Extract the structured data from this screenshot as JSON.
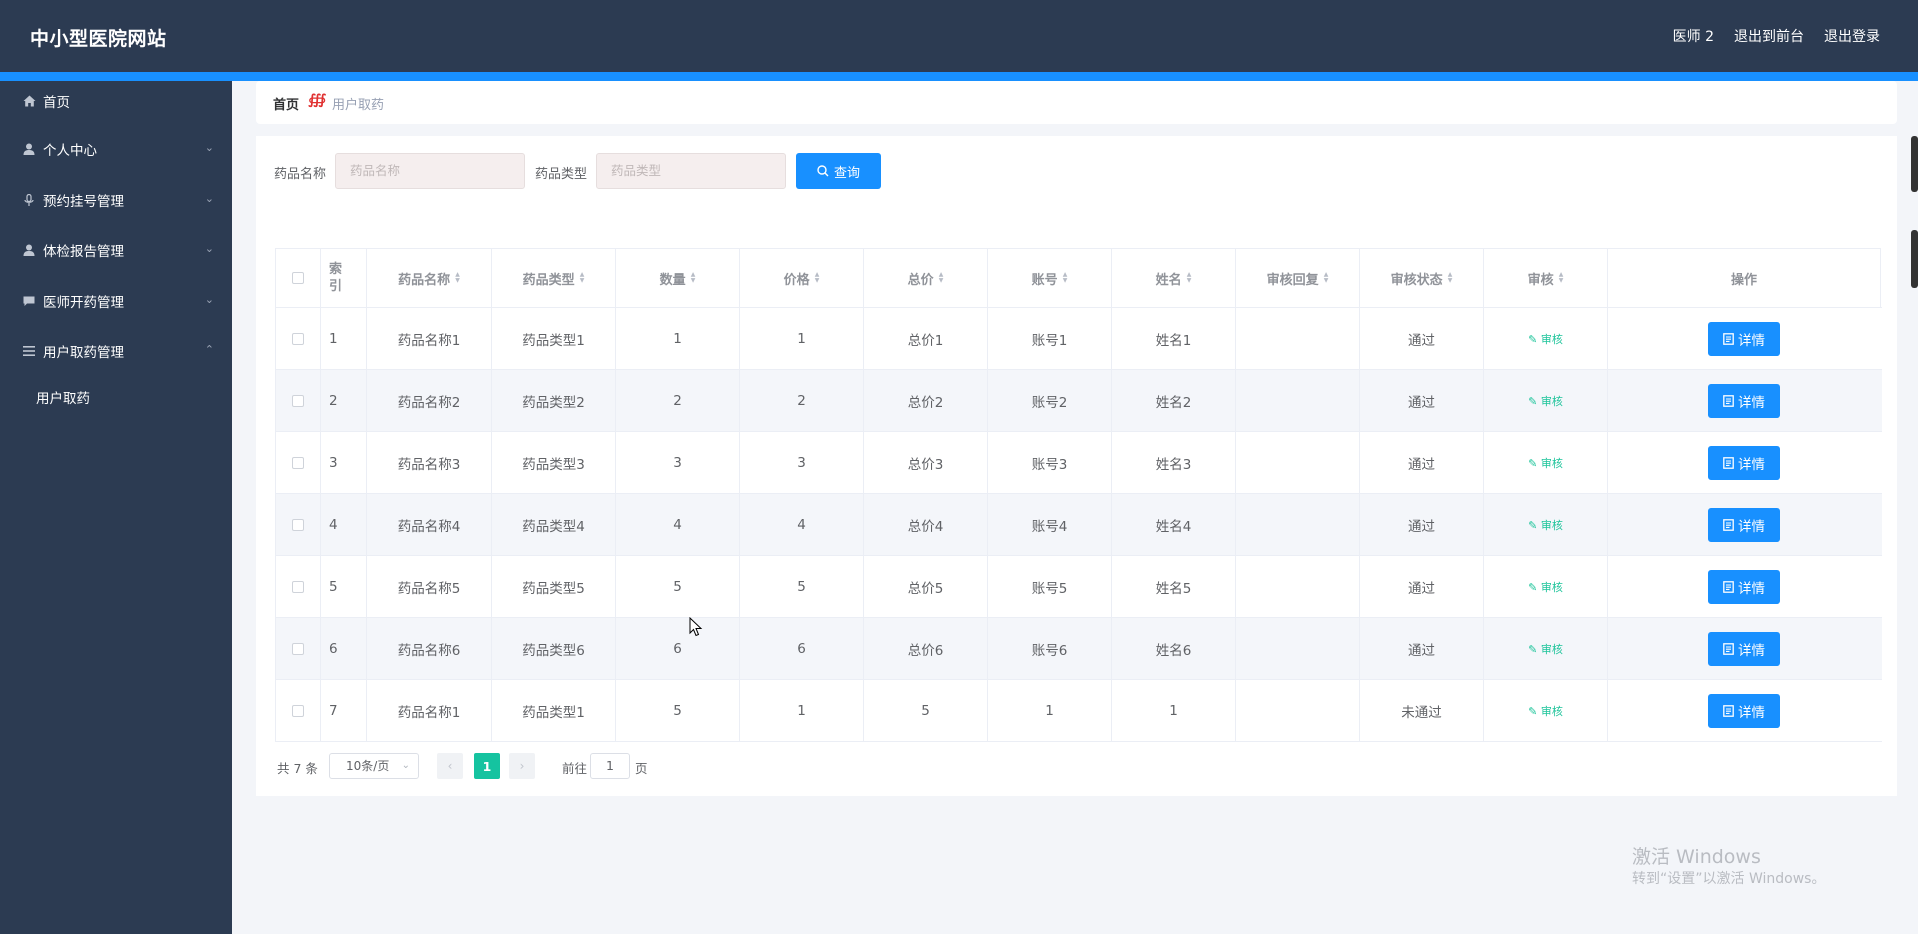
{
  "header": {
    "brand": "中小型医院网站",
    "user": "医师 2",
    "to_front": "退出到前台",
    "logout": "退出登录"
  },
  "sidebar": {
    "items": [
      {
        "label": "首页",
        "icon": "home-icon"
      },
      {
        "label": "个人中心",
        "icon": "user-icon"
      },
      {
        "label": "预约挂号管理",
        "icon": "microphone-icon"
      },
      {
        "label": "体检报告管理",
        "icon": "user-icon"
      },
      {
        "label": "医师开药管理",
        "icon": "chat-icon"
      },
      {
        "label": "用户取药管理",
        "icon": "list-icon"
      }
    ],
    "sub_item": "用户取药"
  },
  "breadcrumb": {
    "home": "首页",
    "separator": "∰",
    "current": "用户取药"
  },
  "search": {
    "name_label": "药品名称",
    "name_placeholder": "药品名称",
    "type_label": "药品类型",
    "type_placeholder": "药品类型",
    "query_button": "查询"
  },
  "table": {
    "columns": [
      "索引",
      "药品名称",
      "药品类型",
      "数量",
      "价格",
      "总价",
      "账号",
      "姓名",
      "审核回复",
      "审核状态",
      "审核",
      "操作"
    ],
    "index_header_line1": "索",
    "index_header_line2": "引",
    "audit_label": "审核",
    "detail_label": "详情",
    "rows": [
      {
        "index": "1",
        "name": "药品名称1",
        "type": "药品类型1",
        "qty": "1",
        "price": "1",
        "total": "总价1",
        "account": "账号1",
        "person": "姓名1",
        "reply": "",
        "status": "通过"
      },
      {
        "index": "2",
        "name": "药品名称2",
        "type": "药品类型2",
        "qty": "2",
        "price": "2",
        "total": "总价2",
        "account": "账号2",
        "person": "姓名2",
        "reply": "",
        "status": "通过"
      },
      {
        "index": "3",
        "name": "药品名称3",
        "type": "药品类型3",
        "qty": "3",
        "price": "3",
        "total": "总价3",
        "account": "账号3",
        "person": "姓名3",
        "reply": "",
        "status": "通过"
      },
      {
        "index": "4",
        "name": "药品名称4",
        "type": "药品类型4",
        "qty": "4",
        "price": "4",
        "total": "总价4",
        "account": "账号4",
        "person": "姓名4",
        "reply": "",
        "status": "通过"
      },
      {
        "index": "5",
        "name": "药品名称5",
        "type": "药品类型5",
        "qty": "5",
        "price": "5",
        "total": "总价5",
        "account": "账号5",
        "person": "姓名5",
        "reply": "",
        "status": "通过"
      },
      {
        "index": "6",
        "name": "药品名称6",
        "type": "药品类型6",
        "qty": "6",
        "price": "6",
        "total": "总价6",
        "account": "账号6",
        "person": "姓名6",
        "reply": "",
        "status": "通过"
      },
      {
        "index": "7",
        "name": "药品名称1",
        "type": "药品类型1",
        "qty": "5",
        "price": "1",
        "total": "5",
        "account": "1",
        "person": "1",
        "reply": "",
        "status": "未通过"
      }
    ]
  },
  "pagination": {
    "total": "共 7 条",
    "page_size": "10条/页",
    "current_page": "1",
    "goto_label": "前往",
    "goto_value": "1",
    "page_suffix": "页"
  },
  "watermark": {
    "line1": "激活 Windows",
    "line2": "转到“设置”以激活 Windows。"
  },
  "colors": {
    "header_bg": "#2c3b52",
    "accent": "#1890ff",
    "audit_green": "#1dc49a",
    "page_active": "#15c3a0"
  }
}
